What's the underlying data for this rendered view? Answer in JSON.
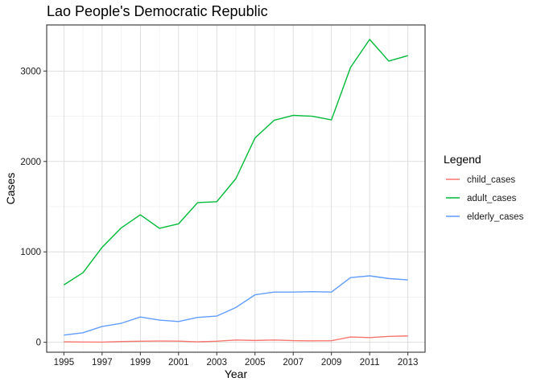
{
  "chart_data": {
    "type": "line",
    "title": "Lao People's Democratic Republic",
    "xlabel": "Year",
    "ylabel": "Cases",
    "x": [
      1995,
      1996,
      1997,
      1998,
      1999,
      2000,
      2001,
      2002,
      2003,
      2004,
      2005,
      2006,
      2007,
      2008,
      2009,
      2010,
      2011,
      2012,
      2013
    ],
    "series": [
      {
        "name": "child_cases",
        "color": "#F8766D",
        "values": [
          5,
          3,
          2,
          8,
          12,
          14,
          13,
          5,
          12,
          25,
          20,
          25,
          18,
          16,
          17,
          58,
          52,
          65,
          70
        ]
      },
      {
        "name": "adult_cases",
        "color": "#00BA38",
        "values": [
          635,
          770,
          1050,
          1265,
          1410,
          1260,
          1310,
          1545,
          1555,
          1810,
          2260,
          2455,
          2510,
          2500,
          2460,
          3040,
          3350,
          3110,
          3170
        ]
      },
      {
        "name": "elderly_cases",
        "color": "#619CFF",
        "values": [
          80,
          105,
          175,
          210,
          280,
          245,
          230,
          275,
          290,
          385,
          525,
          555,
          555,
          560,
          555,
          715,
          735,
          705,
          690
        ]
      }
    ],
    "xticks": [
      "1995",
      "1997",
      "1999",
      "2001",
      "2003",
      "2005",
      "2007",
      "2009",
      "2011",
      "2013"
    ],
    "yticks": [
      "0",
      "1000",
      "2000",
      "3000"
    ],
    "xlim": [
      1994.1,
      2013.9
    ],
    "ylim": [
      -110,
      3510
    ],
    "legend": {
      "title": "Legend",
      "position": "right"
    },
    "grid": true
  }
}
